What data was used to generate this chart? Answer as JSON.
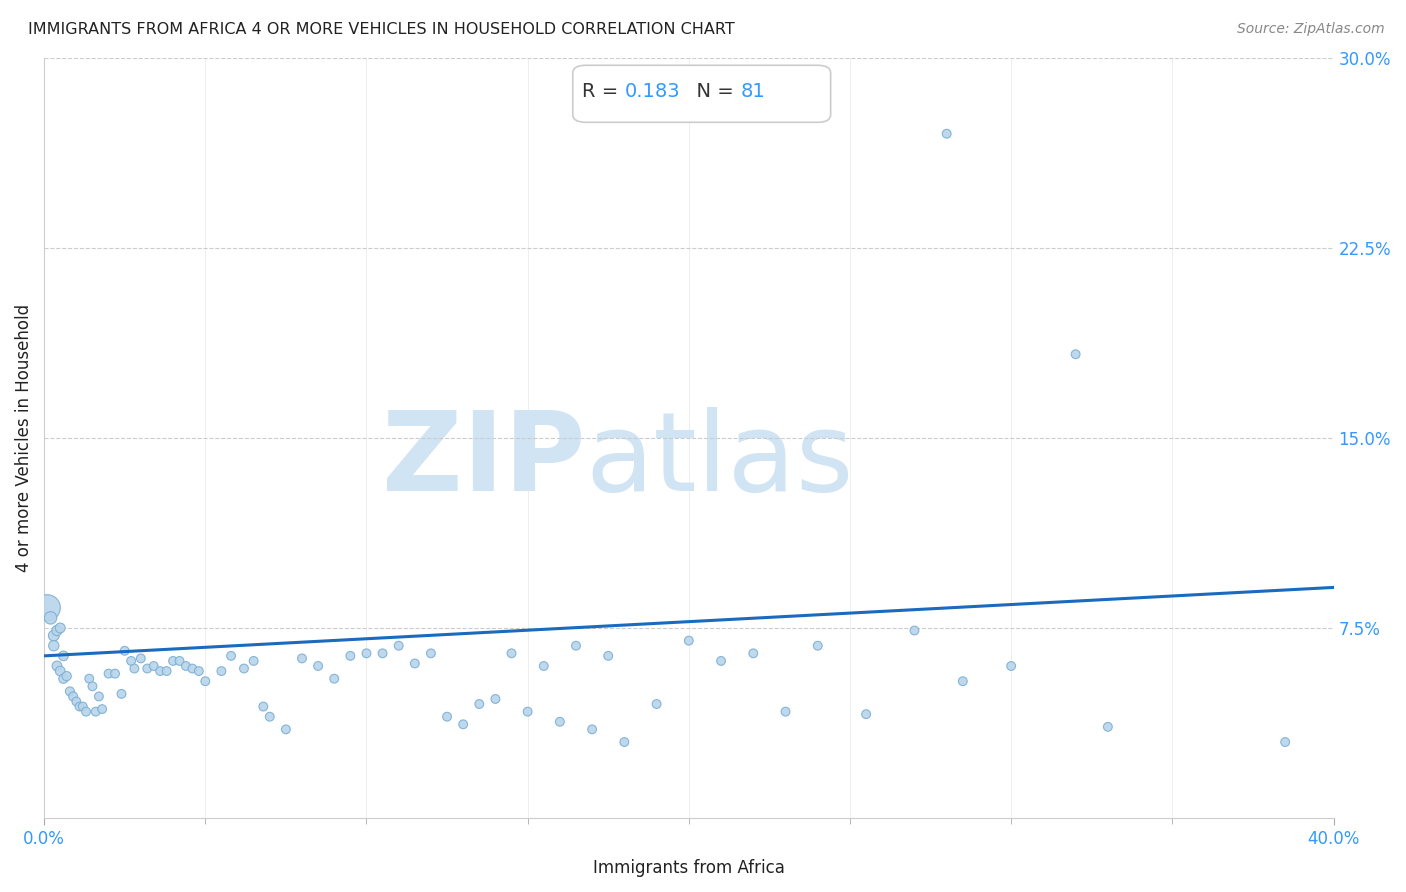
{
  "title": "IMMIGRANTS FROM AFRICA 4 OR MORE VEHICLES IN HOUSEHOLD CORRELATION CHART",
  "source": "Source: ZipAtlas.com",
  "xlabel": "Immigrants from Africa",
  "ylabel": "4 or more Vehicles in Household",
  "xlim": [
    0.0,
    0.4
  ],
  "ylim": [
    0.0,
    0.3
  ],
  "xticks": [
    0.0,
    0.4
  ],
  "xticklabels": [
    "0.0%",
    "40.0%"
  ],
  "yticks_right": [
    0.075,
    0.15,
    0.225,
    0.3
  ],
  "yticklabels_right": [
    "7.5%",
    "15.0%",
    "22.5%",
    "30.0%"
  ],
  "R": 0.183,
  "N": 81,
  "scatter_color": "#b8d4ea",
  "scatter_edge_color": "#7aafd4",
  "line_color": "#1a6bbf",
  "watermark_color": "#d0e4f4",
  "line_y0": 0.064,
  "line_y1": 0.091,
  "scatter_x": [
    0.001,
    0.002,
    0.003,
    0.003,
    0.004,
    0.004,
    0.005,
    0.005,
    0.006,
    0.006,
    0.007,
    0.008,
    0.009,
    0.01,
    0.011,
    0.012,
    0.013,
    0.014,
    0.015,
    0.016,
    0.017,
    0.018,
    0.02,
    0.022,
    0.024,
    0.025,
    0.027,
    0.028,
    0.03,
    0.032,
    0.034,
    0.036,
    0.038,
    0.04,
    0.042,
    0.044,
    0.046,
    0.048,
    0.05,
    0.055,
    0.058,
    0.062,
    0.065,
    0.068,
    0.07,
    0.075,
    0.08,
    0.085,
    0.09,
    0.095,
    0.1,
    0.105,
    0.11,
    0.115,
    0.12,
    0.125,
    0.13,
    0.135,
    0.14,
    0.145,
    0.15,
    0.155,
    0.16,
    0.165,
    0.17,
    0.175,
    0.18,
    0.19,
    0.2,
    0.21,
    0.22,
    0.23,
    0.24,
    0.255,
    0.27,
    0.285,
    0.3,
    0.33,
    0.28,
    0.32,
    0.385
  ],
  "scatter_y": [
    0.083,
    0.079,
    0.072,
    0.068,
    0.074,
    0.06,
    0.075,
    0.058,
    0.064,
    0.055,
    0.056,
    0.05,
    0.048,
    0.046,
    0.044,
    0.044,
    0.042,
    0.055,
    0.052,
    0.042,
    0.048,
    0.043,
    0.057,
    0.057,
    0.049,
    0.066,
    0.062,
    0.059,
    0.063,
    0.059,
    0.06,
    0.058,
    0.058,
    0.062,
    0.062,
    0.06,
    0.059,
    0.058,
    0.054,
    0.058,
    0.064,
    0.059,
    0.062,
    0.044,
    0.04,
    0.035,
    0.063,
    0.06,
    0.055,
    0.064,
    0.065,
    0.065,
    0.068,
    0.061,
    0.065,
    0.04,
    0.037,
    0.045,
    0.047,
    0.065,
    0.042,
    0.06,
    0.038,
    0.068,
    0.035,
    0.064,
    0.03,
    0.045,
    0.07,
    0.062,
    0.065,
    0.042,
    0.068,
    0.041,
    0.074,
    0.054,
    0.06,
    0.036,
    0.27,
    0.183,
    0.03
  ],
  "scatter_sizes": [
    350,
    80,
    60,
    55,
    55,
    50,
    50,
    48,
    48,
    45,
    44,
    42,
    42,
    40,
    40,
    40,
    40,
    40,
    40,
    40,
    40,
    40,
    40,
    40,
    40,
    40,
    40,
    40,
    40,
    40,
    40,
    40,
    40,
    40,
    40,
    40,
    40,
    40,
    40,
    40,
    40,
    40,
    40,
    40,
    40,
    40,
    40,
    40,
    40,
    40,
    40,
    40,
    40,
    40,
    40,
    40,
    40,
    40,
    40,
    40,
    40,
    40,
    40,
    40,
    40,
    40,
    40,
    40,
    40,
    40,
    40,
    40,
    40,
    40,
    40,
    40,
    40,
    40,
    40,
    40,
    40
  ]
}
